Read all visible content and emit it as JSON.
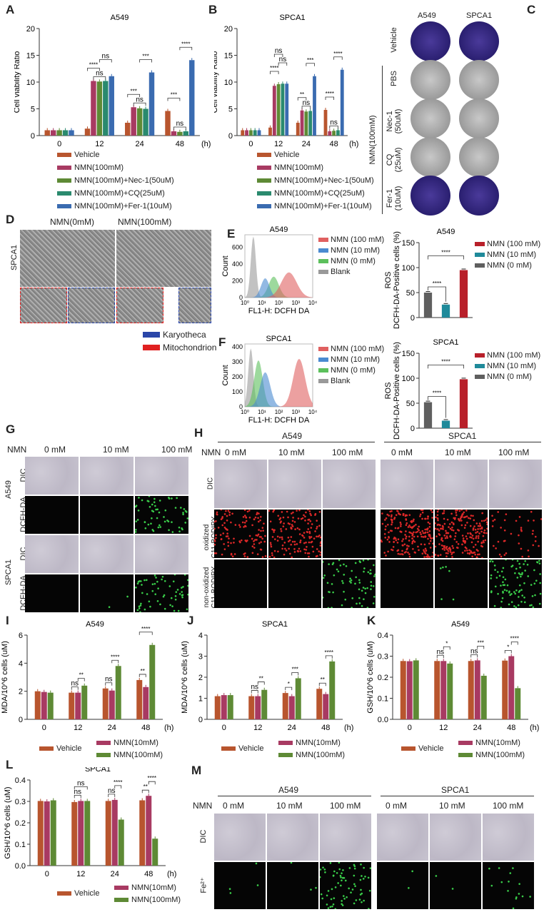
{
  "colors": {
    "vehicle": "#b8552e",
    "nmn": "#a83a62",
    "nec1": "#5e8a35",
    "cq": "#2a8a6e",
    "fer1": "#3a6bb0",
    "gray": "#5f5f5f",
    "teal": "#1f8a9a",
    "red": "#b8202a",
    "blue_box": "#2a46a8",
    "red_box": "#e02020"
  },
  "panel_labels": [
    "A",
    "B",
    "C",
    "D",
    "E",
    "F",
    "G",
    "H",
    "I",
    "J",
    "K",
    "L",
    "M"
  ],
  "chart_data": [
    {
      "id": "A",
      "type": "bar",
      "title": "A549",
      "ylabel": "Cell viability Ratio",
      "xunit": "(h)",
      "ylim": [
        0,
        20
      ],
      "yticks": [
        0,
        5,
        10,
        15,
        20
      ],
      "categories": [
        "0",
        "12",
        "24",
        "48"
      ],
      "series": [
        {
          "name": "Vehicle",
          "color": "#b8552e",
          "values": [
            1.0,
            1.3,
            2.4,
            4.6
          ]
        },
        {
          "name": "NMN(100mM)",
          "color": "#a83a62",
          "values": [
            1.0,
            10.2,
            5.3,
            0.8
          ]
        },
        {
          "name": "NMN(100mM)+Nec-1(50uM)",
          "color": "#5e8a35",
          "values": [
            1.0,
            10.1,
            5.1,
            0.7
          ]
        },
        {
          "name": "NMN(100mM)+CQ(25uM)",
          "color": "#2a8a6e",
          "values": [
            1.0,
            10.2,
            5.0,
            0.8
          ]
        },
        {
          "name": "NMN(100mM)+Fer-1(10uM)",
          "color": "#3a6bb0",
          "values": [
            1.0,
            11.1,
            11.8,
            14.1
          ]
        }
      ],
      "annotations": [
        {
          "group": 1,
          "from": 0,
          "to": 2,
          "label": "****"
        },
        {
          "group": 1,
          "from": 2,
          "to": 4,
          "label": "ns"
        },
        {
          "group": 1,
          "from": 1,
          "to": 3,
          "label": "ns"
        },
        {
          "group": 2,
          "from": 0,
          "to": 2,
          "label": "***"
        },
        {
          "group": 2,
          "from": 2,
          "to": 4,
          "label": "***"
        },
        {
          "group": 2,
          "from": 1,
          "to": 3,
          "label": "ns"
        },
        {
          "group": 3,
          "from": 0,
          "to": 2,
          "label": "***"
        },
        {
          "group": 3,
          "from": 2,
          "to": 4,
          "label": "****"
        },
        {
          "group": 3,
          "from": 1,
          "to": 3,
          "label": "ns"
        }
      ]
    },
    {
      "id": "B",
      "type": "bar",
      "title": "SPCA1",
      "ylabel": "Cell viability Ratio",
      "xunit": "(h)",
      "ylim": [
        0,
        20
      ],
      "yticks": [
        0,
        5,
        10,
        15,
        20
      ],
      "categories": [
        "0",
        "12",
        "24",
        "48"
      ],
      "series": [
        {
          "name": "Vehicle",
          "color": "#b8552e",
          "values": [
            1.0,
            1.5,
            2.4,
            4.8
          ]
        },
        {
          "name": "NMN(100mM)",
          "color": "#a83a62",
          "values": [
            1.0,
            9.3,
            4.7,
            0.8
          ]
        },
        {
          "name": "NMN(100mM)+Nec-1(50uM)",
          "color": "#5e8a35",
          "values": [
            1.0,
            9.6,
            4.5,
            0.9
          ]
        },
        {
          "name": "NMN(100mM)+CQ(25uM)",
          "color": "#2a8a6e",
          "values": [
            1.0,
            9.7,
            4.6,
            1.0
          ]
        },
        {
          "name": "NMN(100mM)+Fer-1(10uM)",
          "color": "#3a6bb0",
          "values": [
            1.0,
            9.7,
            11.1,
            12.3
          ]
        }
      ],
      "annotations": [
        {
          "group": 1,
          "from": 0,
          "to": 2,
          "label": "****"
        },
        {
          "group": 1,
          "from": 2,
          "to": 4,
          "label": "ns"
        },
        {
          "group": 1,
          "from": 1,
          "to": 3,
          "label": "ns"
        },
        {
          "group": 2,
          "from": 0,
          "to": 2,
          "label": "**"
        },
        {
          "group": 2,
          "from": 2,
          "to": 4,
          "label": "***"
        },
        {
          "group": 2,
          "from": 1,
          "to": 3,
          "label": "ns"
        },
        {
          "group": 3,
          "from": 0,
          "to": 2,
          "label": "****"
        },
        {
          "group": 3,
          "from": 2,
          "to": 4,
          "label": "****"
        },
        {
          "group": 3,
          "from": 1,
          "to": 3,
          "label": "ns"
        }
      ]
    },
    {
      "id": "E-hist",
      "type": "area",
      "title": "A549",
      "xlabel": "FL1-H: DCFH DA",
      "ylabel": "Count",
      "xscale": "log",
      "xticks": [
        "10⁰",
        "10¹",
        "10²",
        "10³",
        "10⁴"
      ],
      "ylim": [
        0,
        750
      ],
      "yticks": [
        0,
        200,
        400,
        600
      ],
      "series": [
        {
          "name": "NMN (100 mM)",
          "color": "#e06060",
          "peak_log10": 2.6,
          "peak_count": 300,
          "width": 0.45
        },
        {
          "name": "NMN (10 mM)",
          "color": "#4a8ad0",
          "peak_log10": 1.2,
          "peak_count": 230,
          "width": 0.25
        },
        {
          "name": "NMN (0 mM)",
          "color": "#5cc05c",
          "peak_log10": 1.7,
          "peak_count": 250,
          "width": 0.3
        },
        {
          "name": "Blank",
          "color": "#999999",
          "peak_log10": 0.5,
          "peak_count": 730,
          "width": 0.15
        }
      ]
    },
    {
      "id": "F-hist",
      "type": "area",
      "title": "SPCA1",
      "xlabel": "FL1-H: DCFH DA",
      "ylabel": "Count",
      "xscale": "log",
      "xticks": [
        "10⁰",
        "10¹",
        "10²",
        "10³",
        "10⁴"
      ],
      "ylim": [
        0,
        420
      ],
      "yticks": [
        0,
        100,
        200,
        300,
        400
      ],
      "series": [
        {
          "name": "NMN (100 mM)",
          "color": "#e06060",
          "peak_log10": 3.2,
          "peak_count": 320,
          "width": 0.35
        },
        {
          "name": "NMN (10 mM)",
          "color": "#4a8ad0",
          "peak_log10": 1.2,
          "peak_count": 230,
          "width": 0.3
        },
        {
          "name": "NMN (0 mM)",
          "color": "#5cc05c",
          "peak_log10": 0.8,
          "peak_count": 310,
          "width": 0.25
        },
        {
          "name": "Blank",
          "color": "#999999",
          "peak_log10": 0.35,
          "peak_count": 390,
          "width": 0.15
        }
      ]
    },
    {
      "id": "E-bar",
      "type": "bar",
      "title": "A549",
      "ylabel": "ROS\nDCFH-DA-Positive cells (%)",
      "ylim": [
        0,
        150
      ],
      "yticks": [
        0,
        50,
        100,
        150
      ],
      "categories": [
        "NMN (0 mM)",
        "NMN (10 mM)",
        "NMN (100 mM)"
      ],
      "values": [
        50,
        26,
        95
      ],
      "bar_colors": [
        "#5f5f5f",
        "#1f8a9a",
        "#b8202a"
      ],
      "annotations": [
        {
          "from": 0,
          "to": 1,
          "label": "****"
        },
        {
          "from": 0,
          "to": 2,
          "label": "****"
        }
      ]
    },
    {
      "id": "F-bar",
      "type": "bar",
      "title": "SPCA1",
      "ylabel": "ROS\nDCFH-DA-Positive cells (%)",
      "ylim": [
        0,
        150
      ],
      "yticks": [
        0,
        50,
        100,
        150
      ],
      "categories": [
        "NMN (0 mM)",
        "NMN (10 mM)",
        "NMN (100 mM)"
      ],
      "values": [
        52,
        15,
        98
      ],
      "bar_colors": [
        "#5f5f5f",
        "#1f8a9a",
        "#b8202a"
      ],
      "annotations": [
        {
          "from": 0,
          "to": 1,
          "label": "****"
        },
        {
          "from": 0,
          "to": 2,
          "label": "****"
        }
      ]
    },
    {
      "id": "I",
      "type": "bar",
      "title": "A549",
      "ylabel": "MDA/10^6 cells (uM)",
      "xunit": "(h)",
      "ylim": [
        0,
        6
      ],
      "yticks": [
        0,
        2,
        4,
        6
      ],
      "categories": [
        "0",
        "12",
        "24",
        "48"
      ],
      "series": [
        {
          "name": "Vehicle",
          "color": "#b8552e",
          "values": [
            2.0,
            1.9,
            2.2,
            2.8
          ]
        },
        {
          "name": "NMN(10mM)",
          "color": "#a83a62",
          "values": [
            1.95,
            1.9,
            2.05,
            2.3
          ]
        },
        {
          "name": "NMN(100mM)",
          "color": "#5e8a35",
          "values": [
            1.9,
            2.4,
            3.8,
            5.3
          ]
        }
      ],
      "annotations": [
        {
          "group": 1,
          "from": 0,
          "to": 1,
          "label": "ns"
        },
        {
          "group": 1,
          "from": 1,
          "to": 2,
          "label": "**"
        },
        {
          "group": 2,
          "from": 0,
          "to": 1,
          "label": "ns"
        },
        {
          "group": 2,
          "from": 1,
          "to": 2,
          "label": "****"
        },
        {
          "group": 3,
          "from": 0,
          "to": 1,
          "label": "**"
        },
        {
          "group": 3,
          "from": 0,
          "to": 2,
          "label": "****"
        }
      ]
    },
    {
      "id": "J",
      "type": "bar",
      "title": "SPCA1",
      "ylabel": "MDA/10^6 cells (uM)",
      "xunit": "(h)",
      "ylim": [
        0,
        4
      ],
      "yticks": [
        0,
        1,
        2,
        3,
        4
      ],
      "categories": [
        "0",
        "12",
        "24",
        "48"
      ],
      "series": [
        {
          "name": "Vehicle",
          "color": "#b8552e",
          "values": [
            1.1,
            1.1,
            1.25,
            1.45
          ]
        },
        {
          "name": "NMN(10mM)",
          "color": "#a83a62",
          "values": [
            1.15,
            1.1,
            1.1,
            1.2
          ]
        },
        {
          "name": "NMN(100mM)",
          "color": "#5e8a35",
          "values": [
            1.15,
            1.4,
            1.95,
            2.75
          ]
        }
      ],
      "annotations": [
        {
          "group": 1,
          "from": 0,
          "to": 1,
          "label": "ns"
        },
        {
          "group": 1,
          "from": 1,
          "to": 2,
          "label": "**"
        },
        {
          "group": 2,
          "from": 0,
          "to": 1,
          "label": "*"
        },
        {
          "group": 2,
          "from": 1,
          "to": 2,
          "label": "***"
        },
        {
          "group": 3,
          "from": 0,
          "to": 1,
          "label": "**"
        },
        {
          "group": 3,
          "from": 1,
          "to": 2,
          "label": "****"
        }
      ]
    },
    {
      "id": "K",
      "type": "bar",
      "title": "A549",
      "ylabel": "GSH/10^6 cells (uM)",
      "xunit": "(h)",
      "ylim": [
        0,
        0.4
      ],
      "yticks": [
        "0.0",
        "0.1",
        "0.2",
        "0.3",
        "0.4"
      ],
      "categories": [
        "0",
        "12",
        "24",
        "48"
      ],
      "series": [
        {
          "name": "Vehicle",
          "color": "#b8552e",
          "values": [
            0.277,
            0.277,
            0.277,
            0.279
          ]
        },
        {
          "name": "NMN(10mM)",
          "color": "#a83a62",
          "values": [
            0.276,
            0.277,
            0.28,
            0.3
          ]
        },
        {
          "name": "NMN(100mM)",
          "color": "#5e8a35",
          "values": [
            0.28,
            0.265,
            0.207,
            0.148
          ]
        }
      ],
      "annotations": [
        {
          "group": 1,
          "from": 0,
          "to": 1,
          "label": "ns"
        },
        {
          "group": 1,
          "from": 1,
          "to": 2,
          "label": "*"
        },
        {
          "group": 2,
          "from": 0,
          "to": 1,
          "label": "ns"
        },
        {
          "group": 2,
          "from": 1,
          "to": 2,
          "label": "***"
        },
        {
          "group": 3,
          "from": 0,
          "to": 1,
          "label": "*"
        },
        {
          "group": 3,
          "from": 1,
          "to": 2,
          "label": "****"
        }
      ]
    },
    {
      "id": "L",
      "type": "bar",
      "title": "SPCA1",
      "ylabel": "GSH/10^6 cells (uM)",
      "xunit": "(h)",
      "ylim": [
        0,
        0.4
      ],
      "yticks": [
        "0.0",
        "0.1",
        "0.2",
        "0.3",
        "0.4"
      ],
      "categories": [
        "0",
        "12",
        "24",
        "48"
      ],
      "series": [
        {
          "name": "Vehicle",
          "color": "#b8552e",
          "values": [
            0.302,
            0.297,
            0.302,
            0.305
          ]
        },
        {
          "name": "NMN(10mM)",
          "color": "#a83a62",
          "values": [
            0.3,
            0.302,
            0.307,
            0.326
          ]
        },
        {
          "name": "NMN(100mM)",
          "color": "#5e8a35",
          "values": [
            0.305,
            0.302,
            0.215,
            0.126
          ]
        }
      ],
      "annotations": [
        {
          "group": 1,
          "from": 0,
          "to": 1,
          "label": "ns"
        },
        {
          "group": 1,
          "from": 0,
          "to": 2,
          "label": "ns"
        },
        {
          "group": 2,
          "from": 0,
          "to": 1,
          "label": "ns"
        },
        {
          "group": 2,
          "from": 1,
          "to": 2,
          "label": "****"
        },
        {
          "group": 3,
          "from": 0,
          "to": 1,
          "label": "**"
        },
        {
          "group": 3,
          "from": 1,
          "to": 2,
          "label": "****"
        }
      ]
    }
  ],
  "panel_c": {
    "columns": [
      "A549",
      "SPCA1"
    ],
    "rows": [
      "Vehicle",
      "PBS",
      "Nec-1\n(50uM)",
      "CQ\n(25uM)",
      "Fer-1\n(10uM)"
    ],
    "group_label": "NMN(100mM)"
  },
  "panel_d": {
    "columns": [
      "NMN(0mM)",
      "NMN(100mM)"
    ],
    "row_label": "SPCA1",
    "legend": [
      {
        "label": "Karyotheca",
        "color": "#2a46a8"
      },
      {
        "label": "Mitochondrion",
        "color": "#e02020"
      }
    ]
  },
  "panel_g": {
    "nmn_label": "NMN",
    "columns": [
      "0 mM",
      "10 mM",
      "100 mM"
    ],
    "row_groups": [
      {
        "cell": "A549",
        "rows": [
          "DIC",
          "DCFH-DA"
        ]
      },
      {
        "cell": "SPCA1",
        "rows": [
          "DIC",
          "DCFH-DA"
        ]
      }
    ]
  },
  "panel_h": {
    "nmn_label": "NMN",
    "groups": [
      "A549",
      "SPCA1"
    ],
    "columns": [
      "0 mM",
      "10 mM",
      "100 mM"
    ],
    "rows": [
      "DIC",
      "oxidized\nC11-BODIPY",
      "non-oxidized\nC11-BODIPY"
    ]
  },
  "panel_m": {
    "nmn_label": "NMN",
    "groups": [
      "A549",
      "SPCA1"
    ],
    "columns": [
      "0 mM",
      "10 mM",
      "100 mM"
    ],
    "rows": [
      "DIC",
      "Fe²⁺"
    ]
  }
}
